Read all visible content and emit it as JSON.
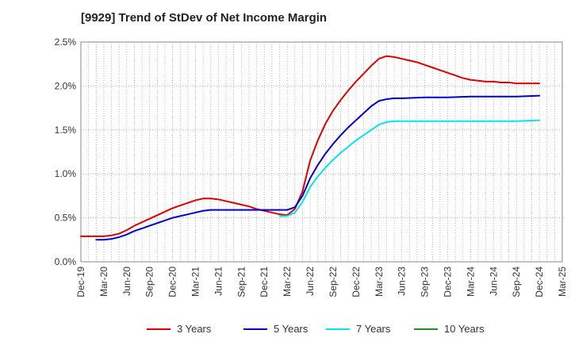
{
  "chart_data": {
    "type": "line",
    "title": "[9929]  Trend of StDev of Net Income Margin",
    "xlabel": "",
    "ylabel": "",
    "ylim": [
      0,
      2.5
    ],
    "y_ticks": [
      "0.0%",
      "0.5%",
      "1.0%",
      "1.5%",
      "2.0%",
      "2.5%"
    ],
    "y_tick_values": [
      0,
      0.5,
      1.0,
      1.5,
      2.0,
      2.5
    ],
    "x_ticks": [
      "Dec-19",
      "Mar-20",
      "Jun-20",
      "Sep-20",
      "Dec-20",
      "Mar-21",
      "Jun-21",
      "Sep-21",
      "Dec-21",
      "Mar-22",
      "Jun-22",
      "Sep-22",
      "Dec-22",
      "Mar-23",
      "Jun-23",
      "Sep-23",
      "Dec-23",
      "Mar-24",
      "Jun-24",
      "Sep-24",
      "Dec-24",
      "Mar-25"
    ],
    "grid": true,
    "legend_position": "bottom",
    "series": [
      {
        "name": "3 Years",
        "color": "#dd0000",
        "points": [
          [
            "Dec-19",
            0.29
          ],
          [
            "Jan-20",
            0.29
          ],
          [
            "Feb-20",
            0.29
          ],
          [
            "Mar-20",
            0.29
          ],
          [
            "Apr-20",
            0.3
          ],
          [
            "May-20",
            0.32
          ],
          [
            "Jun-20",
            0.36
          ],
          [
            "Jul-20",
            0.41
          ],
          [
            "Aug-20",
            0.45
          ],
          [
            "Sep-20",
            0.49
          ],
          [
            "Oct-20",
            0.53
          ],
          [
            "Nov-20",
            0.57
          ],
          [
            "Dec-20",
            0.61
          ],
          [
            "Jan-21",
            0.64
          ],
          [
            "Feb-21",
            0.67
          ],
          [
            "Mar-21",
            0.7
          ],
          [
            "Apr-21",
            0.72
          ],
          [
            "May-21",
            0.72
          ],
          [
            "Jun-21",
            0.71
          ],
          [
            "Jul-21",
            0.69
          ],
          [
            "Aug-21",
            0.67
          ],
          [
            "Sep-21",
            0.65
          ],
          [
            "Oct-21",
            0.63
          ],
          [
            "Nov-21",
            0.6
          ],
          [
            "Dec-21",
            0.58
          ],
          [
            "Jan-22",
            0.56
          ],
          [
            "Feb-22",
            0.54
          ],
          [
            "Mar-22",
            0.53
          ],
          [
            "Apr-22",
            0.6
          ],
          [
            "May-22",
            0.8
          ],
          [
            "Jun-22",
            1.15
          ],
          [
            "Jul-22",
            1.38
          ],
          [
            "Aug-22",
            1.57
          ],
          [
            "Sep-22",
            1.72
          ],
          [
            "Oct-22",
            1.84
          ],
          [
            "Nov-22",
            1.95
          ],
          [
            "Dec-22",
            2.05
          ],
          [
            "Jan-23",
            2.14
          ],
          [
            "Feb-23",
            2.23
          ],
          [
            "Mar-23",
            2.31
          ],
          [
            "Apr-23",
            2.34
          ],
          [
            "May-23",
            2.33
          ],
          [
            "Jun-23",
            2.31
          ],
          [
            "Jul-23",
            2.29
          ],
          [
            "Aug-23",
            2.27
          ],
          [
            "Sep-23",
            2.24
          ],
          [
            "Oct-23",
            2.21
          ],
          [
            "Nov-23",
            2.18
          ],
          [
            "Dec-23",
            2.15
          ],
          [
            "Jan-24",
            2.12
          ],
          [
            "Feb-24",
            2.09
          ],
          [
            "Mar-24",
            2.07
          ],
          [
            "Apr-24",
            2.06
          ],
          [
            "May-24",
            2.05
          ],
          [
            "Jun-24",
            2.05
          ],
          [
            "Jul-24",
            2.04
          ],
          [
            "Aug-24",
            2.04
          ],
          [
            "Sep-24",
            2.03
          ],
          [
            "Oct-24",
            2.03
          ],
          [
            "Nov-24",
            2.03
          ],
          [
            "Dec-24",
            2.03
          ]
        ]
      },
      {
        "name": "5 Years",
        "color": "#0000cc",
        "points": [
          [
            "Feb-20",
            0.25
          ],
          [
            "Mar-20",
            0.25
          ],
          [
            "Apr-20",
            0.26
          ],
          [
            "May-20",
            0.28
          ],
          [
            "Jun-20",
            0.31
          ],
          [
            "Jul-20",
            0.35
          ],
          [
            "Aug-20",
            0.38
          ],
          [
            "Sep-20",
            0.41
          ],
          [
            "Oct-20",
            0.44
          ],
          [
            "Nov-20",
            0.47
          ],
          [
            "Dec-20",
            0.5
          ],
          [
            "Jan-21",
            0.52
          ],
          [
            "Feb-21",
            0.54
          ],
          [
            "Mar-21",
            0.56
          ],
          [
            "Apr-21",
            0.58
          ],
          [
            "May-21",
            0.59
          ],
          [
            "Jun-21",
            0.59
          ],
          [
            "Jul-21",
            0.59
          ],
          [
            "Aug-21",
            0.59
          ],
          [
            "Sep-21",
            0.59
          ],
          [
            "Oct-21",
            0.59
          ],
          [
            "Nov-21",
            0.59
          ],
          [
            "Dec-21",
            0.59
          ],
          [
            "Jan-22",
            0.59
          ],
          [
            "Feb-22",
            0.59
          ],
          [
            "Mar-22",
            0.59
          ],
          [
            "Apr-22",
            0.62
          ],
          [
            "May-22",
            0.75
          ],
          [
            "Jun-22",
            0.95
          ],
          [
            "Jul-22",
            1.1
          ],
          [
            "Aug-22",
            1.23
          ],
          [
            "Sep-22",
            1.34
          ],
          [
            "Oct-22",
            1.44
          ],
          [
            "Nov-22",
            1.53
          ],
          [
            "Dec-22",
            1.61
          ],
          [
            "Jan-23",
            1.69
          ],
          [
            "Feb-23",
            1.77
          ],
          [
            "Mar-23",
            1.83
          ],
          [
            "Apr-23",
            1.85
          ],
          [
            "May-23",
            1.86
          ],
          [
            "Jun-23",
            1.86
          ],
          [
            "Sep-23",
            1.87
          ],
          [
            "Dec-23",
            1.87
          ],
          [
            "Mar-24",
            1.88
          ],
          [
            "Jun-24",
            1.88
          ],
          [
            "Sep-24",
            1.88
          ],
          [
            "Dec-24",
            1.89
          ]
        ]
      },
      {
        "name": "7 Years",
        "color": "#00e5ee",
        "points": [
          [
            "Feb-22",
            0.52
          ],
          [
            "Mar-22",
            0.52
          ],
          [
            "Apr-22",
            0.56
          ],
          [
            "May-22",
            0.68
          ],
          [
            "Jun-22",
            0.85
          ],
          [
            "Jul-22",
            0.97
          ],
          [
            "Aug-22",
            1.07
          ],
          [
            "Sep-22",
            1.16
          ],
          [
            "Oct-22",
            1.24
          ],
          [
            "Nov-22",
            1.31
          ],
          [
            "Dec-22",
            1.38
          ],
          [
            "Jan-23",
            1.44
          ],
          [
            "Feb-23",
            1.5
          ],
          [
            "Mar-23",
            1.56
          ],
          [
            "Apr-23",
            1.59
          ],
          [
            "May-23",
            1.6
          ],
          [
            "Jun-23",
            1.6
          ],
          [
            "Sep-23",
            1.6
          ],
          [
            "Dec-23",
            1.6
          ],
          [
            "Mar-24",
            1.6
          ],
          [
            "Jun-24",
            1.6
          ],
          [
            "Sep-24",
            1.6
          ],
          [
            "Dec-24",
            1.61
          ]
        ]
      },
      {
        "name": "10 Years",
        "color": "#228b22",
        "points": []
      }
    ]
  }
}
